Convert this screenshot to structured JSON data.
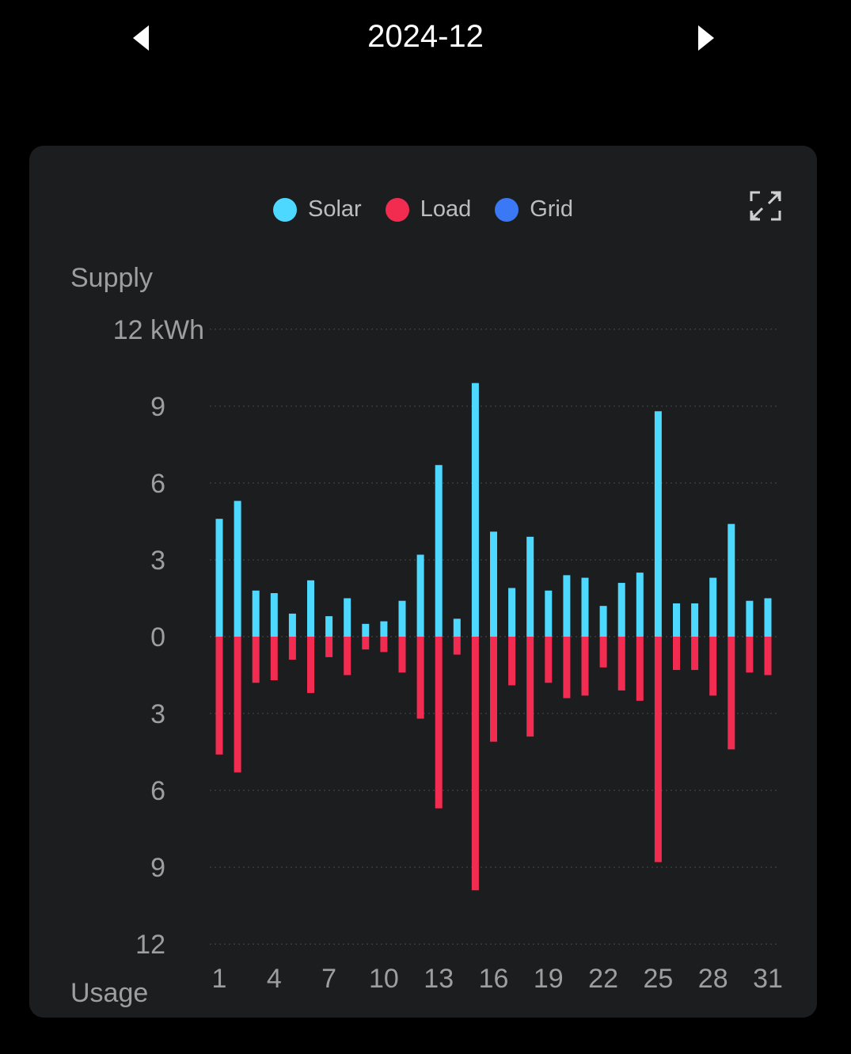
{
  "header": {
    "title": "2024-12",
    "prev_icon": "triangle-left-icon",
    "next_icon": "triangle-right-icon"
  },
  "card": {
    "expand_icon": "expand-icon",
    "supply_label": "Supply",
    "usage_label": "Usage"
  },
  "chart_data": {
    "type": "bar",
    "legend": [
      {
        "name": "Solar",
        "color": "#4dd9ff"
      },
      {
        "name": "Load",
        "color": "#f22c51"
      },
      {
        "name": "Grid",
        "color": "#3b78f5"
      }
    ],
    "legend_position": "top-center",
    "x": [
      1,
      2,
      3,
      4,
      5,
      6,
      7,
      8,
      9,
      10,
      11,
      12,
      13,
      14,
      15,
      16,
      17,
      18,
      19,
      20,
      21,
      22,
      23,
      24,
      25,
      26,
      27,
      28,
      29,
      30,
      31
    ],
    "x_tick_labels": [
      "1",
      "4",
      "7",
      "10",
      "13",
      "16",
      "19",
      "22",
      "25",
      "28",
      "31"
    ],
    "y_tick_labels": [
      "12 kWh",
      "9",
      "6",
      "3",
      "0",
      "3",
      "6",
      "9",
      "12"
    ],
    "ylim": [
      -12,
      12
    ],
    "unit": "kWh",
    "grid": true,
    "series": [
      {
        "name": "Solar",
        "direction": "supply",
        "values": [
          4.6,
          5.3,
          1.8,
          1.7,
          0.9,
          2.2,
          0.8,
          1.5,
          0.5,
          0.6,
          1.4,
          3.2,
          6.7,
          0.7,
          9.9,
          4.1,
          1.9,
          3.9,
          1.8,
          2.4,
          2.3,
          1.2,
          2.1,
          2.5,
          8.8,
          1.3,
          1.3,
          2.3,
          4.4,
          1.4,
          1.5
        ]
      },
      {
        "name": "Load",
        "direction": "usage",
        "values": [
          4.6,
          5.3,
          1.8,
          1.7,
          0.9,
          2.2,
          0.8,
          1.5,
          0.5,
          0.6,
          1.4,
          3.2,
          6.7,
          0.7,
          9.9,
          4.1,
          1.9,
          3.9,
          1.8,
          2.4,
          2.3,
          1.2,
          2.1,
          2.5,
          8.8,
          1.3,
          1.3,
          2.3,
          4.4,
          1.4,
          1.5
        ]
      },
      {
        "name": "Grid",
        "direction": "supply",
        "values": [
          0,
          0,
          0,
          0,
          0,
          0,
          0,
          0,
          0,
          0,
          0,
          0,
          0,
          0,
          0,
          0,
          0,
          0,
          0,
          0,
          0,
          0,
          0,
          0,
          0,
          0,
          0,
          0,
          0,
          0,
          0
        ]
      }
    ]
  }
}
